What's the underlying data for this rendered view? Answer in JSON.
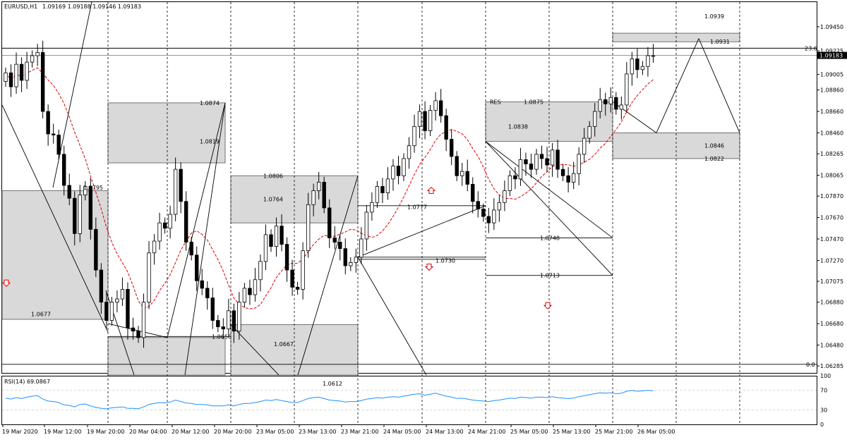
{
  "header": {
    "symbol": "EURUSD,H1",
    "ohlc": "1.09169 1.09188 1.09146 1.09183"
  },
  "chart_data": {
    "type": "candlestick",
    "symbol": "EURUSD",
    "timeframe": "H1",
    "current_price": "1.09183",
    "ylim": [
      1.0622,
      1.0968
    ],
    "price_ticks": [
      "1.09450",
      "1.09225",
      "1.09005",
      "1.08860",
      "1.08660",
      "1.08460",
      "1.08265",
      "1.08065",
      "1.07870",
      "1.07670",
      "1.07470",
      "1.07270",
      "1.07075",
      "1.06880",
      "1.06680",
      "1.06480",
      "1.06285"
    ],
    "time_labels": [
      "19 Mar 2020",
      "19 Mar 12:00",
      "19 Mar 20:00",
      "20 Mar 04:00",
      "20 Mar 12:00",
      "20 Mar 20:00",
      "23 Mar 05:00",
      "23 Mar 13:00",
      "23 Mar 21:00",
      "24 Mar 05:00",
      "24 Mar 13:00",
      "24 Mar 21:00",
      "25 Mar 05:00",
      "25 Mar 13:00",
      "25 Mar 21:00",
      "26 Mar 05:00"
    ],
    "closes": [
      1.0902,
      1.0889,
      1.091,
      1.0895,
      1.0912,
      1.0918,
      1.0921,
      1.0866,
      1.0845,
      1.0844,
      1.0826,
      1.0797,
      1.0785,
      1.0752,
      1.0788,
      1.0796,
      1.0756,
      1.0718,
      1.0688,
      1.0671,
      1.0688,
      1.0691,
      1.07,
      1.0664,
      1.0661,
      1.0655,
      1.0688,
      1.0734,
      1.0745,
      1.0762,
      1.0757,
      1.077,
      1.0812,
      1.0782,
      1.0744,
      1.0732,
      1.0708,
      1.0701,
      1.0692,
      1.0671,
      1.0665,
      1.0663,
      1.068,
      1.0661,
      1.0688,
      1.0701,
      1.0695,
      1.0709,
      1.0726,
      1.0751,
      1.074,
      1.0759,
      1.0742,
      1.0718,
      1.0702,
      1.07,
      1.0736,
      1.0779,
      1.0792,
      1.08,
      1.0776,
      1.0748,
      1.0744,
      1.0738,
      1.0722,
      1.0725,
      1.073,
      1.0747,
      1.0772,
      1.0781,
      1.0796,
      1.079,
      1.0803,
      1.0815,
      1.0806,
      1.0822,
      1.0834,
      1.0852,
      1.0866,
      1.0848,
      1.0867,
      1.0876,
      1.0862,
      1.084,
      1.0824,
      1.0806,
      1.081,
      1.0798,
      1.0782,
      1.0775,
      1.0768,
      1.0762,
      1.0774,
      1.0781,
      1.0792,
      1.0806,
      1.0803,
      1.0821,
      1.0817,
      1.0812,
      1.0826,
      1.0822,
      1.0816,
      1.083,
      1.0812,
      1.0806,
      1.08,
      1.0808,
      1.0826,
      1.0841,
      1.0852,
      1.0866,
      1.0877,
      1.0873,
      1.0879,
      1.0868,
      1.0872,
      1.0901,
      1.0915,
      1.0905,
      1.0908,
      1.0918,
      1.0918
    ],
    "ma": {
      "label": "",
      "color": "#e00000"
    },
    "zones": [
      {
        "label": "1.0677",
        "color": "#d9d9d9"
      },
      {
        "label": "1.0819",
        "color": "#d9d9d9"
      },
      {
        "label": "1.0764",
        "color": "#d9d9d9"
      },
      {
        "label": "1.0667",
        "color": "#d9d9d9"
      },
      {
        "label": "1.0838",
        "color": "#d9d9d9"
      },
      {
        "label": "1.0846",
        "color": "#d9d9d9"
      },
      {
        "label": "1.0939",
        "color": "#d9d9d9"
      }
    ],
    "annotations": [
      "1.0874",
      "1.0795",
      "1.0806",
      "1.0777",
      "1.0730",
      "1.0656",
      "1.0612",
      "RES",
      "1.0875",
      "1.0748",
      "1.0713",
      "1.0931",
      "1.0822",
      "23.6",
      "0.0"
    ],
    "arrows": [
      {
        "direction": "down",
        "color": "#e00000"
      },
      {
        "direction": "up",
        "color": "#e00000"
      },
      {
        "direction": "down",
        "color": "#e00000"
      },
      {
        "direction": "down",
        "color": "#e00000"
      }
    ]
  },
  "rsi": {
    "label": "RSI(14) 69.0867",
    "levels": [
      "100",
      "70",
      "30",
      "0"
    ],
    "color": "#1e90ff",
    "values": [
      54,
      52,
      55,
      53,
      56,
      58,
      59,
      52,
      48,
      47,
      45,
      40,
      39,
      36,
      41,
      42,
      38,
      35,
      33,
      32,
      34,
      35,
      36,
      33,
      33,
      32,
      36,
      41,
      43,
      45,
      44,
      46,
      50,
      47,
      44,
      43,
      41,
      41,
      40,
      38,
      38,
      38,
      40,
      38,
      41,
      43,
      43,
      45,
      47,
      50,
      49,
      51,
      49,
      47,
      45,
      45,
      49,
      53,
      55,
      56,
      53,
      50,
      49,
      48,
      46,
      47,
      47,
      49,
      52,
      53,
      55,
      54,
      56,
      57,
      56,
      58,
      60,
      62,
      63,
      60,
      62,
      64,
      61,
      58,
      56,
      53,
      54,
      52,
      50,
      49,
      48,
      47,
      49,
      50,
      52,
      54,
      53,
      56,
      55,
      54,
      56,
      56,
      55,
      57,
      55,
      54,
      53,
      54,
      57,
      59,
      61,
      63,
      65,
      64,
      65,
      63,
      64,
      68,
      70,
      68,
      69,
      70,
      69
    ]
  }
}
